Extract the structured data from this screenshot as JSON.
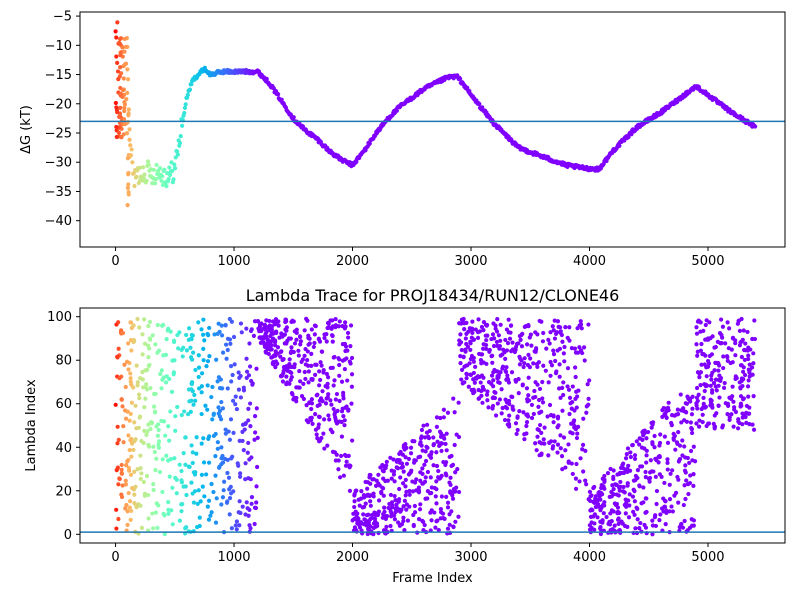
{
  "chart_data": [
    {
      "type": "scatter",
      "title": "",
      "xlabel": "",
      "ylabel": "ΔG (kT)",
      "xlim": [
        -300,
        5650
      ],
      "ylim": [
        -44.5,
        -4.3
      ],
      "xticks": [
        0,
        1000,
        2000,
        3000,
        4000,
        5000
      ],
      "xtick_labels": [
        "0",
        "1000",
        "2000",
        "3000",
        "4000",
        "5000"
      ],
      "yticks": [
        -40,
        -35,
        -30,
        -25,
        -20,
        -15,
        -10,
        -5
      ],
      "ytick_labels": [
        "−40",
        "−35",
        "−30",
        "−25",
        "−20",
        "−15",
        "−10",
        "−5"
      ],
      "hline": -23,
      "hline_color": "#1f77b4",
      "colormap": "rainbow (color encodes position along the trajectory: red at start, violet at end)",
      "grid": false,
      "legend": "none",
      "trace_keypoints": {
        "x": [
          0,
          30,
          60,
          100,
          130,
          160,
          200,
          250,
          300,
          350,
          400,
          450,
          500,
          550,
          600,
          650,
          700,
          750,
          800,
          900,
          1000,
          1100,
          1200,
          1300,
          1400,
          1500,
          1600,
          1700,
          1800,
          1900,
          2000,
          2100,
          2200,
          2300,
          2400,
          2500,
          2600,
          2700,
          2800,
          2880,
          2950,
          3000,
          3200,
          3400,
          3600,
          3800,
          3950,
          4080,
          4200,
          4400,
          4600,
          4800,
          4900,
          5000,
          5200,
          5400
        ],
        "y": [
          -6,
          -12,
          -10,
          -14,
          -29,
          -33,
          -32,
          -31.5,
          -32,
          -31.5,
          -32,
          -32.5,
          -31,
          -25,
          -19,
          -16,
          -15,
          -14,
          -15,
          -14.5,
          -14.5,
          -14.5,
          -14.5,
          -16.5,
          -19.5,
          -22.5,
          -24.5,
          -26,
          -28,
          -29.5,
          -30.5,
          -28,
          -25,
          -22.5,
          -20.5,
          -19,
          -17.5,
          -16.5,
          -15.5,
          -15.3,
          -17,
          -18.5,
          -23.5,
          -27.5,
          -29,
          -30.5,
          -31,
          -31.2,
          -28,
          -24,
          -21.5,
          -18.5,
          -17,
          -18.5,
          -21.5,
          -24
        ]
      }
    },
    {
      "type": "scatter",
      "title": "Lambda Trace for PROJ18434/RUN12/CLONE46",
      "xlabel": "Frame Index",
      "ylabel": "Lambda Index",
      "xlim": [
        -300,
        5650
      ],
      "ylim": [
        -4,
        104
      ],
      "xticks": [
        0,
        1000,
        2000,
        3000,
        4000,
        5000
      ],
      "xtick_labels": [
        "0",
        "1000",
        "2000",
        "3000",
        "4000",
        "5000"
      ],
      "yticks": [
        0,
        20,
        40,
        60,
        80,
        100
      ],
      "ytick_labels": [
        "0",
        "20",
        "40",
        "60",
        "80",
        "100"
      ],
      "hline": 1,
      "hline_color": "#1f77b4",
      "colormap": "rainbow (color encodes position along the trajectory: red at start, violet at end)",
      "grid": false,
      "legend": "none",
      "x_range": [
        0,
        5400
      ],
      "y_range": [
        0,
        99
      ]
    }
  ]
}
